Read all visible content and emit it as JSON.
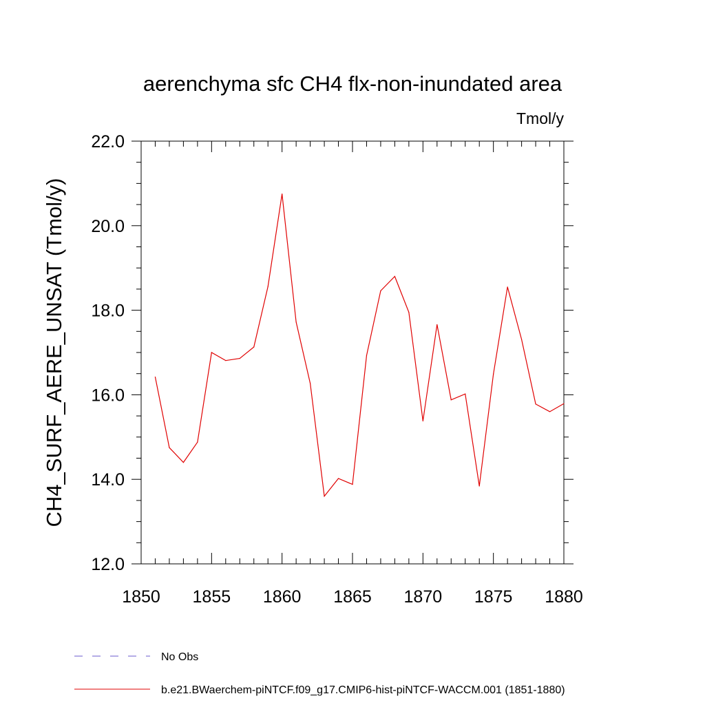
{
  "chart_data": {
    "type": "line",
    "title": "aerenchyma sfc CH4 flx-non-inundated area",
    "units_label": "Tmol/y",
    "ylabel": "CH4_SURF_AERE_UNSAT  (Tmol/y)",
    "xlabel": "",
    "xlim": [
      1850,
      1880
    ],
    "ylim": [
      12.0,
      22.0
    ],
    "x_ticks": [
      "1850",
      "1855",
      "1860",
      "1865",
      "1870",
      "1875",
      "1880"
    ],
    "y_ticks": [
      "12.0",
      "14.0",
      "16.0",
      "18.0",
      "20.0",
      "22.0"
    ],
    "grid": false,
    "legend_position": "bottom-left",
    "series": [
      {
        "name": "b.e21.BWaerchem-piNTCF.f09_g17.CMIP6-hist-piNTCF-WACCM.001 (1851-1880)",
        "color": "#e00000",
        "style": "solid",
        "x": [
          1851,
          1852,
          1853,
          1854,
          1855,
          1856,
          1857,
          1858,
          1859,
          1860,
          1861,
          1862,
          1863,
          1864,
          1865,
          1866,
          1867,
          1868,
          1869,
          1870,
          1871,
          1872,
          1873,
          1874,
          1875,
          1876,
          1877,
          1878,
          1879,
          1880
        ],
        "values": [
          16.42,
          14.75,
          14.4,
          14.88,
          17.0,
          16.81,
          16.86,
          17.13,
          18.56,
          20.75,
          17.72,
          16.27,
          13.6,
          14.02,
          13.88,
          16.93,
          18.46,
          18.8,
          17.95,
          15.38,
          17.66,
          15.88,
          16.02,
          13.84,
          16.49,
          18.55,
          17.31,
          15.78,
          15.6,
          15.79
        ]
      },
      {
        "name": "No Obs",
        "color": "#6a5acd",
        "style": "dashed",
        "x": [],
        "values": []
      }
    ]
  }
}
